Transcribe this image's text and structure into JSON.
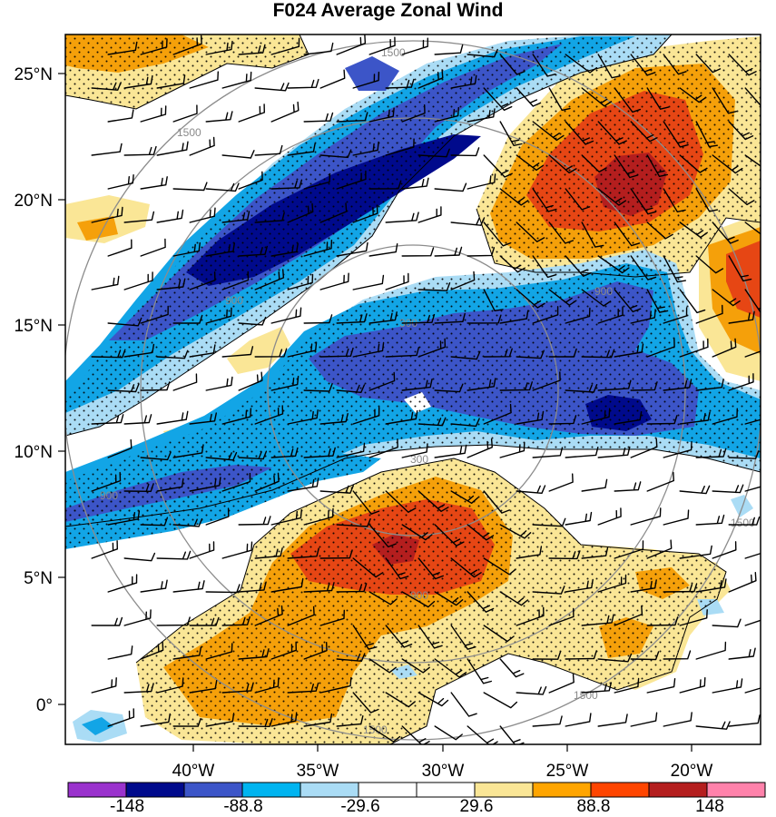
{
  "title": "F024 Average Zonal Wind",
  "map": {
    "lat_labels": [
      "25°N",
      "20°N",
      "15°N",
      "10°N",
      "5°N",
      "0°"
    ],
    "lon_labels": [
      "40°W",
      "35°W",
      "30°W",
      "25°W",
      "20°W"
    ],
    "range_ring_labels": [
      "300",
      "900",
      "1500"
    ],
    "fill_colors": {
      "strong_easterly": "#000a8c",
      "moderate_easterly": "#3c55c8",
      "easterly": "#12a5e6",
      "weak_easterly": "#aadcf5",
      "neutral": "#ffffff",
      "weak_westerly": "#fae696",
      "westerly": "#f5a00a",
      "moderate_westerly": "#e64614",
      "strong_westerly": "#b41e1e"
    },
    "overlays": [
      "stippling",
      "wind-barbs",
      "range-rings"
    ]
  },
  "colorbar": {
    "colors": [
      "#9a32cd",
      "#000a8c",
      "#3c55c8",
      "#00b4f0",
      "#aadcf5",
      "#ffffff",
      "#ffffff",
      "#fae696",
      "#ffa500",
      "#ff4500",
      "#b41e1e",
      "#ff82ab"
    ],
    "labels": [
      "-148",
      "-88.8",
      "-29.6",
      "29.6",
      "88.8",
      "148"
    ]
  }
}
